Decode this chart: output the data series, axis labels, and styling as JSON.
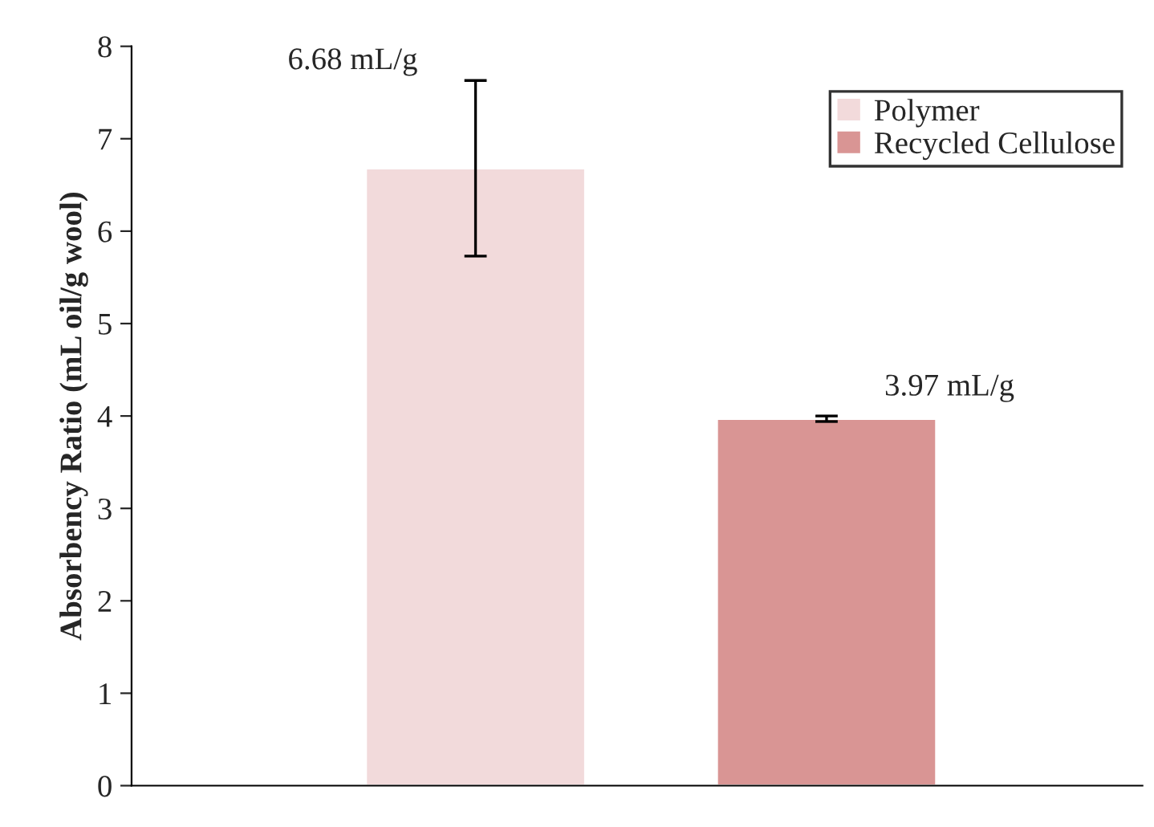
{
  "chart_data": {
    "type": "bar",
    "ylabel": "Absorbency Ratio (mL oil/g wool)",
    "categories": [
      null,
      null
    ],
    "series": [
      {
        "name": "Polymer",
        "color": "#f2dadb",
        "values": [
          6.68,
          null
        ],
        "errors": [
          0.95,
          null
        ],
        "value_labels": [
          "6.68 mL/g",
          null
        ]
      },
      {
        "name": "Recycled Cellulose",
        "color": "#d99594",
        "values": [
          null,
          3.97
        ],
        "errors": [
          null,
          0.03
        ],
        "value_labels": [
          null,
          "3.97 mL/g"
        ]
      }
    ],
    "ylim": [
      0,
      8
    ],
    "yticks": [
      0,
      1,
      2,
      3,
      4,
      5,
      6,
      7,
      8
    ],
    "grid": false,
    "legend": "top right"
  }
}
